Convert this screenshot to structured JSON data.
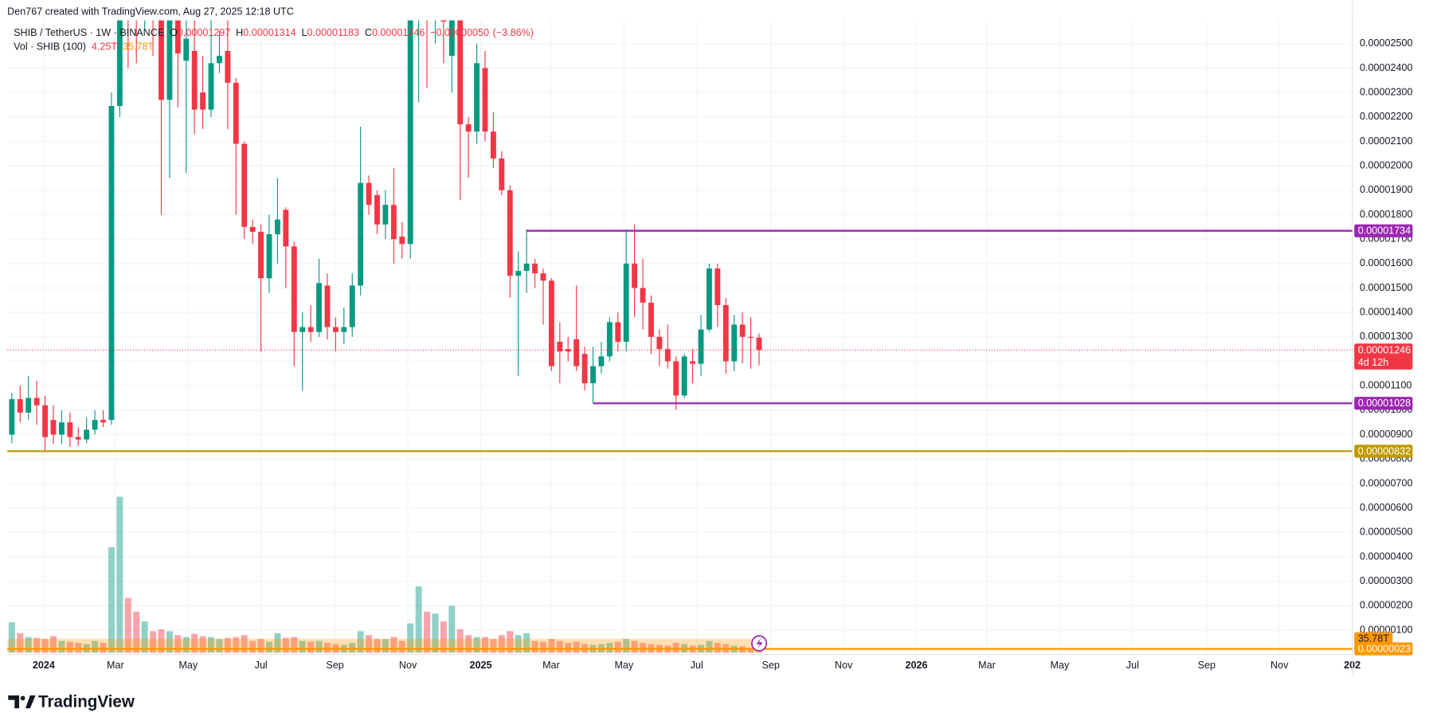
{
  "header": {
    "credit": "Den767 created with TradingView.com, Aug 27, 2025 12:18 UTC"
  },
  "chart_data": {
    "type": "candlestick",
    "title": "SHIB / TetherUS · 1W · BINANCE",
    "legend_values": [
      {
        "key": "O",
        "value": 1.297e-05,
        "label": "0.00001297"
      },
      {
        "key": "H",
        "value": 1.314e-05,
        "label": "0.00001314"
      },
      {
        "key": "L",
        "value": 1.183e-05,
        "label": "0.00001183"
      },
      {
        "key": "C",
        "value": 1.246e-05,
        "label": "0.00001246"
      }
    ],
    "change": {
      "value": -5e-07,
      "label": "−0.00000050"
    },
    "change_pct": {
      "value": -3.86,
      "label": "(−3.86%)"
    },
    "open": [
      9e-06,
      1.045e-05,
      9.9e-06,
      1.05e-05,
      1.02e-05,
      9.6e-06,
      9e-06,
      9.5e-06,
      8.9e-06,
      8.8e-06,
      9.2e-06,
      9.6e-06,
      9.6e-06,
      2.245e-05,
      3e-05,
      2.7e-05,
      2.65e-05,
      2.9e-05,
      2.6e-05,
      2.27e-05,
      2.62e-05,
      2.43e-05,
      2.47e-05,
      2.3e-05,
      2.23e-05,
      2.42e-05,
      2.47e-05,
      2.34e-05,
      2.09e-05,
      1.75e-05,
      1.73e-05,
      1.54e-05,
      1.72e-05,
      1.82e-05,
      1.67e-05,
      1.32e-05,
      1.34e-05,
      1.32e-05,
      1.51e-05,
      1.34e-05,
      1.32e-05,
      1.34e-05,
      1.51e-05,
      1.93e-05,
      1.88e-05,
      1.76e-05,
      1.84e-05,
      1.71e-05,
      1.68e-05,
      2.7e-05,
      2.9e-05,
      2.65e-05,
      2.7e-05,
      2.45e-05,
      2.65e-05,
      2.17e-05,
      2.14e-05,
      2.4e-05,
      2.14e-05,
      2.03e-05,
      1.9e-05,
      1.55e-05,
      1.57e-05,
      1.6e-05,
      1.56e-05,
      1.53e-05,
      1.28e-05,
      1.25e-05,
      1.29e-05,
      1.23e-05,
      1.11e-05,
      1.18e-05,
      1.22e-05,
      1.36e-05,
      1.28e-05,
      1.6e-05,
      1.5e-05,
      1.44e-05,
      1.3e-05,
      1.25e-05,
      1.2e-05,
      1.06e-05,
      1.2e-05,
      1.19e-05,
      1.33e-05,
      1.58e-05,
      1.43e-05,
      1.2e-05,
      1.35e-05,
      1.3e-05,
      1.297e-05
    ],
    "high": [
      1.07e-05,
      1.1e-05,
      1.14e-05,
      1.12e-05,
      1.06e-05,
      1.02e-05,
      1e-05,
      9.9e-06,
      9.3e-06,
      9.7e-06,
      1e-05,
      1e-05,
      2.3e-05,
      4e-05,
      4.5e-05,
      3e-05,
      3.1e-05,
      3.2e-05,
      2.7e-05,
      2.8e-05,
      2.7e-05,
      2.7e-05,
      2.6e-05,
      2.45e-05,
      2.6e-05,
      2.55e-05,
      2.6e-05,
      2.36e-05,
      2.1e-05,
      1.78e-05,
      1.76e-05,
      1.8e-05,
      1.95e-05,
      1.83e-05,
      1.69e-05,
      1.4e-05,
      1.43e-05,
      1.62e-05,
      1.56e-05,
      1.38e-05,
      1.42e-05,
      1.56e-05,
      2.16e-05,
      1.96e-05,
      1.9e-05,
      1.9e-05,
      1.99e-05,
      1.77e-05,
      3e-05,
      3.3e-05,
      3e-05,
      3.2e-05,
      2.9e-05,
      2.9e-05,
      2.7e-05,
      2.2e-05,
      2.5e-05,
      2.47e-05,
      2.22e-05,
      2.06e-05,
      1.92e-05,
      1.65e-05,
      1.74e-05,
      1.62e-05,
      1.58e-05,
      1.54e-05,
      1.36e-05,
      1.3e-05,
      1.51e-05,
      1.26e-05,
      1.26e-05,
      1.28e-05,
      1.38e-05,
      1.4e-05,
      1.74e-05,
      1.76e-05,
      1.62e-05,
      1.47e-05,
      1.33e-05,
      1.35e-05,
      1.22e-05,
      1.23e-05,
      1.25e-05,
      1.39e-05,
      1.6e-05,
      1.6e-05,
      1.46e-05,
      1.39e-05,
      1.4e-05,
      1.38e-05,
      1.314e-05
    ],
    "low": [
      8.65e-06,
      9.5e-06,
      9.6e-06,
      9.4e-06,
      8.3e-06,
      8.6e-06,
      8.6e-06,
      8.5e-06,
      8.55e-06,
      8.65e-06,
      9e-06,
      9.3e-06,
      9.4e-06,
      2.2e-05,
      2.4e-05,
      2.42e-05,
      2.56e-05,
      2.45e-05,
      1.8e-05,
      1.95e-05,
      2.24e-05,
      1.97e-05,
      2.13e-05,
      2.15e-05,
      2.2e-05,
      2.38e-05,
      2.15e-05,
      1.8e-05,
      1.7e-05,
      1.68e-05,
      1.24e-05,
      1.48e-05,
      1.6e-05,
      1.5e-05,
      1.18e-05,
      1.08e-05,
      1.28e-05,
      1.3e-05,
      1.29e-05,
      1.24e-05,
      1.27e-05,
      1.3e-05,
      1.47e-05,
      1.8e-05,
      1.72e-05,
      1.7e-05,
      1.6e-05,
      1.62e-05,
      1.62e-05,
      2.26e-05,
      2.32e-05,
      2.5e-05,
      2.42e-05,
      2.3e-05,
      1.86e-05,
      1.95e-05,
      2.09e-05,
      2.1e-05,
      1.99e-05,
      1.88e-05,
      1.46e-05,
      1.14e-05,
      1.48e-05,
      1.5e-05,
      1.35e-05,
      1.16e-05,
      1.11e-05,
      1.2e-05,
      1.16e-05,
      1.08e-05,
      1.03e-05,
      1.15e-05,
      1.2e-05,
      1.24e-05,
      1.24e-05,
      1.38e-05,
      1.33e-05,
      1.23e-05,
      1.18e-05,
      1.17e-05,
      1e-05,
      1.05e-05,
      1.11e-05,
      1.14e-05,
      1.32e-05,
      1.34e-05,
      1.15e-05,
      1.16e-05,
      1.19e-05,
      1.17e-05,
      1.183e-05
    ],
    "close": [
      1.045e-05,
      9.9e-06,
      1.05e-05,
      1.02e-05,
      8.9e-06,
      9e-06,
      9.5e-06,
      8.9e-06,
      8.8e-06,
      9.2e-06,
      9.6e-06,
      9.5e-06,
      2.245e-05,
      3e-05,
      2.7e-05,
      2.65e-05,
      2.9e-05,
      2.6e-05,
      2.27e-05,
      2.62e-05,
      2.46e-05,
      2.52e-05,
      2.23e-05,
      2.23e-05,
      2.42e-05,
      2.45e-05,
      2.34e-05,
      2.09e-05,
      1.75e-05,
      1.73e-05,
      1.54e-05,
      1.72e-05,
      1.78e-05,
      1.67e-05,
      1.32e-05,
      1.34e-05,
      1.32e-05,
      1.52e-05,
      1.34e-05,
      1.32e-05,
      1.34e-05,
      1.51e-05,
      1.93e-05,
      1.84e-05,
      1.76e-05,
      1.84e-05,
      1.7e-05,
      1.68e-05,
      2.7e-05,
      2.9e-05,
      2.65e-05,
      2.7e-05,
      2.59e-05,
      2.65e-05,
      2.17e-05,
      2.14e-05,
      2.42e-05,
      2.14e-05,
      2.03e-05,
      1.9e-05,
      1.55e-05,
      1.57e-05,
      1.6e-05,
      1.56e-05,
      1.53e-05,
      1.18e-05,
      1.24e-05,
      1.24e-05,
      1.18e-05,
      1.11e-05,
      1.18e-05,
      1.22e-05,
      1.36e-05,
      1.28e-05,
      1.6e-05,
      1.5e-05,
      1.44e-05,
      1.3e-05,
      1.25e-05,
      1.2e-05,
      1.06e-05,
      1.22e-05,
      1.19e-05,
      1.33e-05,
      1.58e-05,
      1.43e-05,
      1.2e-05,
      1.35e-05,
      1.3e-05,
      1.297e-05,
      1.246e-05
    ],
    "up_color": "#089981",
    "down_color": "#f23645",
    "volume": {
      "name": "Vol · SHIB (100)",
      "values": [
        78,
        50,
        40,
        38,
        35,
        42,
        30,
        28,
        25,
        22,
        30,
        25,
        270,
        400,
        140,
        105,
        80,
        55,
        60,
        55,
        45,
        40,
        48,
        42,
        40,
        35,
        38,
        40,
        45,
        30,
        35,
        28,
        50,
        38,
        40,
        30,
        28,
        30,
        25,
        22,
        20,
        25,
        55,
        45,
        35,
        35,
        40,
        30,
        75,
        170,
        105,
        100,
        80,
        120,
        60,
        45,
        40,
        40,
        35,
        45,
        55,
        45,
        50,
        30,
        28,
        35,
        30,
        25,
        28,
        22,
        20,
        22,
        25,
        28,
        35,
        30,
        25,
        22,
        20,
        18,
        25,
        22,
        18,
        20,
        30,
        25,
        22,
        18,
        16,
        12,
        4.25
      ],
      "last_label": "4.25T",
      "ma": 35.78,
      "ma_label": "35.78T",
      "ma_color": "#ff9800"
    },
    "ylim": [
      0,
      2.595e-05
    ],
    "yticks": [
      {
        "value": 1e-06,
        "label": "0.00000100"
      },
      {
        "value": 2e-06,
        "label": "0.00000200"
      },
      {
        "value": 3e-06,
        "label": "0.00000300"
      },
      {
        "value": 4e-06,
        "label": "0.00000400"
      },
      {
        "value": 5e-06,
        "label": "0.00000500"
      },
      {
        "value": 6e-06,
        "label": "0.00000600"
      },
      {
        "value": 7e-06,
        "label": "0.00000700"
      },
      {
        "value": 8e-06,
        "label": "0.00000800"
      },
      {
        "value": 9e-06,
        "label": "0.00000900"
      },
      {
        "value": 1e-05,
        "label": "0.00001000"
      },
      {
        "value": 1.1e-05,
        "label": "0.00001100"
      },
      {
        "value": 1.2e-05,
        "label": "0.00001200"
      },
      {
        "value": 1.3e-05,
        "label": "0.00001300"
      },
      {
        "value": 1.4e-05,
        "label": "0.00001400"
      },
      {
        "value": 1.5e-05,
        "label": "0.00001500"
      },
      {
        "value": 1.6e-05,
        "label": "0.00001600"
      },
      {
        "value": 1.7e-05,
        "label": "0.00001700"
      },
      {
        "value": 1.8e-05,
        "label": "0.00001800"
      },
      {
        "value": 1.9e-05,
        "label": "0.00001900"
      },
      {
        "value": 2e-05,
        "label": "0.00002000"
      },
      {
        "value": 2.1e-05,
        "label": "0.00002100"
      },
      {
        "value": 2.2e-05,
        "label": "0.00002200"
      },
      {
        "value": 2.3e-05,
        "label": "0.00002300"
      },
      {
        "value": 2.4e-05,
        "label": "0.00002400"
      },
      {
        "value": 2.5e-05,
        "label": "0.00002500"
      }
    ],
    "xticks": [
      {
        "value": "2024-01",
        "label": "2024"
      },
      {
        "value": "2024-03",
        "label": "Mar"
      },
      {
        "value": "2024-05",
        "label": "May"
      },
      {
        "value": "2024-07",
        "label": "Jul"
      },
      {
        "value": "2024-09",
        "label": "Sep"
      },
      {
        "value": "2024-11",
        "label": "Nov"
      },
      {
        "value": "2025-01",
        "label": "2025"
      },
      {
        "value": "2025-03",
        "label": "Mar"
      },
      {
        "value": "2025-05",
        "label": "May"
      },
      {
        "value": "2025-07",
        "label": "Jul"
      },
      {
        "value": "2025-09",
        "label": "Sep"
      },
      {
        "value": "2025-11",
        "label": "Nov"
      },
      {
        "value": "2026-01",
        "label": "2026"
      },
      {
        "value": "2026-03",
        "label": "Mar"
      },
      {
        "value": "2026-05",
        "label": "May"
      },
      {
        "value": "2026-07",
        "label": "Jul"
      },
      {
        "value": "2026-09",
        "label": "Sep"
      },
      {
        "value": "2026-11",
        "label": "Nov"
      },
      {
        "value": "2027-01",
        "label": "202"
      }
    ],
    "grid": true,
    "last_price": {
      "value": 1.246e-05,
      "label": "0.00001246",
      "countdown": "4d 12h"
    },
    "levels": [
      {
        "value": 1.734e-05,
        "label": "0.00001734",
        "color": "#9c27b0"
      },
      {
        "value": 1.028e-05,
        "label": "0.00001028",
        "color": "#9c27b0"
      },
      {
        "value": 8.32e-06,
        "label": "0.00000832",
        "color": "#bf9b00"
      },
      {
        "value": 2.3e-07,
        "label": "0.00000023",
        "color": "#ff9800"
      }
    ]
  },
  "footer": {
    "brand": "TradingView"
  }
}
